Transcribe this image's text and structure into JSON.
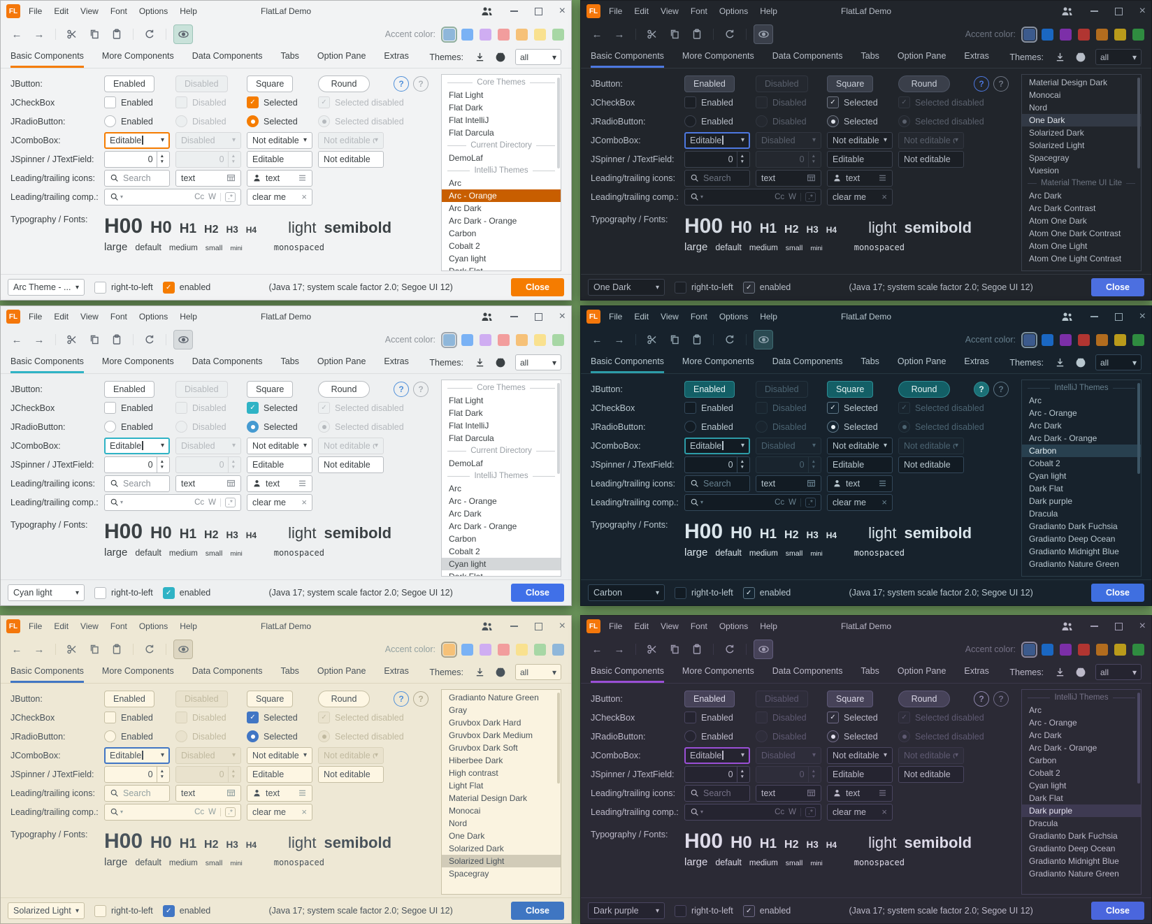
{
  "shared": {
    "logo_text": "FL",
    "title": "FlatLaf Demo",
    "menus": [
      "File",
      "Edit",
      "View",
      "Font",
      "Options",
      "Help"
    ],
    "tabs": [
      "Basic Components",
      "More Components",
      "Data Components",
      "Tabs",
      "Option Pane",
      "Extras"
    ],
    "toolbar": {
      "accent_label": "Accent color:"
    },
    "themes_header": {
      "label": "Themes:",
      "filter_value": "all"
    },
    "rows": {
      "jbutton": {
        "label": "JButton:",
        "enabled": "Enabled",
        "disabled": "Disabled",
        "square": "Square",
        "round": "Round",
        "help": "?"
      },
      "jcheckbox": {
        "label": "JCheckBox",
        "enabled": "Enabled",
        "disabled": "Disabled",
        "selected": "Selected",
        "selected_disabled": "Selected disabled"
      },
      "jradiobutton": {
        "label": "JRadioButton:",
        "enabled": "Enabled",
        "disabled": "Disabled",
        "selected": "Selected",
        "selected_disabled": "Selected disabled"
      },
      "jcombobox": {
        "label": "JComboBox:",
        "editable": "Editable",
        "disabled": "Disabled",
        "not_editable": "Not editable",
        "not_editable_disabled": "Not editable dis..."
      },
      "jspinner": {
        "label": "JSpinner / JTextField:",
        "value1": "0",
        "value2": "0",
        "editable": "Editable",
        "not_editable": "Not editable"
      },
      "icons_row": {
        "label": "Leading/trailing icons:",
        "search_placeholder": "Search",
        "text": "text"
      },
      "comp_row": {
        "label": "Leading/trailing comp.:",
        "match_case": "Cc",
        "whole_word": "W",
        "regex": ".*",
        "clear_value": "clear me"
      },
      "typography": {
        "label": "Typography / Fonts:",
        "h00": "H00",
        "h0": "H0",
        "h1": "H1",
        "h2": "H2",
        "h3": "H3",
        "h4": "H4",
        "light": "light",
        "semibold": "semibold",
        "large": "large",
        "default": "default",
        "medium": "medium",
        "small": "small",
        "mini": "mini",
        "monospaced": "monospaced"
      }
    },
    "statusbar": {
      "rtl_label": "right-to-left",
      "enabled_label": "enabled",
      "java_info": "(Java 17;  system scale factor 2.0; Segoe UI 12)",
      "close_label": "Close"
    }
  },
  "windows": [
    {
      "theme": "arc-orange",
      "bottom_theme_value": "Arc Theme - ...",
      "selected_swatch": 0,
      "accent_swatches": [
        "#8fb7da",
        "#7ab2f5",
        "#cfadf2",
        "#f29d9d",
        "#f6c178",
        "#f9e18f",
        "#a7d7a5"
      ],
      "themes_list": [
        {
          "sep": "Core Themes"
        },
        {
          "label": "Flat Light"
        },
        {
          "label": "Flat Dark"
        },
        {
          "label": "Flat IntelliJ"
        },
        {
          "label": "Flat Darcula"
        },
        {
          "sep": "Current Directory"
        },
        {
          "label": "DemoLaf"
        },
        {
          "sep": "IntelliJ Themes"
        },
        {
          "label": "Arc"
        },
        {
          "label": "Arc - Orange",
          "selected": true
        },
        {
          "label": "Arc Dark"
        },
        {
          "label": "Arc Dark - Orange"
        },
        {
          "label": "Carbon"
        },
        {
          "label": "Cobalt 2"
        },
        {
          "label": "Cyan light"
        },
        {
          "label": "Dark Flat"
        }
      ]
    },
    {
      "theme": "one-dark",
      "bottom_theme_value": "One Dark",
      "selected_swatch": 0,
      "accent_swatches": [
        "#3c5a8c",
        "#1a67c2",
        "#7c2fa8",
        "#b13531",
        "#b26c1e",
        "#ba9b1b",
        "#2f8c40"
      ],
      "themes_list": [
        {
          "label": "Material Design Dark"
        },
        {
          "label": "Monocai"
        },
        {
          "label": "Nord"
        },
        {
          "label": "One Dark",
          "selected": true
        },
        {
          "label": "Solarized Dark"
        },
        {
          "label": "Solarized Light"
        },
        {
          "label": "Spacegray"
        },
        {
          "label": "Vuesion"
        },
        {
          "sep": "Material Theme UI Lite"
        },
        {
          "label": "Arc Dark"
        },
        {
          "label": "Arc Dark Contrast"
        },
        {
          "label": "Atom One Dark"
        },
        {
          "label": "Atom One Dark Contrast"
        },
        {
          "label": "Atom One Light"
        },
        {
          "label": "Atom One Light Contrast"
        }
      ]
    },
    {
      "theme": "cyan-light",
      "bottom_theme_value": "Cyan light",
      "selected_swatch": 0,
      "accent_swatches": [
        "#8fb7da",
        "#7ab2f5",
        "#cfadf2",
        "#f29d9d",
        "#f6c178",
        "#f9e18f",
        "#a7d7a5"
      ],
      "themes_list": [
        {
          "sep": "Core Themes"
        },
        {
          "label": "Flat Light"
        },
        {
          "label": "Flat Dark"
        },
        {
          "label": "Flat IntelliJ"
        },
        {
          "label": "Flat Darcula"
        },
        {
          "sep": "Current Directory"
        },
        {
          "label": "DemoLaf"
        },
        {
          "sep": "IntelliJ Themes"
        },
        {
          "label": "Arc"
        },
        {
          "label": "Arc - Orange"
        },
        {
          "label": "Arc Dark"
        },
        {
          "label": "Arc Dark - Orange"
        },
        {
          "label": "Carbon"
        },
        {
          "label": "Cobalt 2"
        },
        {
          "label": "Cyan light",
          "selected": true
        },
        {
          "label": "Dark Flat"
        }
      ]
    },
    {
      "theme": "carbon",
      "bottom_theme_value": "Carbon",
      "selected_swatch": 0,
      "accent_swatches": [
        "#3c5a8c",
        "#1a67c2",
        "#7c2fa8",
        "#b13531",
        "#b26c1e",
        "#ba9b1b",
        "#2f8c40"
      ],
      "themes_list": [
        {
          "sep": "IntelliJ Themes"
        },
        {
          "label": "Arc"
        },
        {
          "label": "Arc - Orange"
        },
        {
          "label": "Arc Dark"
        },
        {
          "label": "Arc Dark - Orange"
        },
        {
          "label": "Carbon",
          "selected": true
        },
        {
          "label": "Cobalt 2"
        },
        {
          "label": "Cyan light"
        },
        {
          "label": "Dark Flat"
        },
        {
          "label": "Dark purple"
        },
        {
          "label": "Dracula"
        },
        {
          "label": "Gradianto Dark Fuchsia"
        },
        {
          "label": "Gradianto Deep Ocean"
        },
        {
          "label": "Gradianto Midnight Blue"
        },
        {
          "label": "Gradianto Nature Green"
        }
      ]
    },
    {
      "theme": "solarized-light",
      "bottom_theme_value": "Solarized Light",
      "selected_swatch": 0,
      "accent_swatches": [
        "#f6c178",
        "#7ab2f5",
        "#cfadf2",
        "#f29d9d",
        "#f9e18f",
        "#a7d7a5",
        "#8fb7da"
      ],
      "themes_list": [
        {
          "label": "Gradianto Nature Green"
        },
        {
          "label": "Gray"
        },
        {
          "label": "Gruvbox Dark Hard"
        },
        {
          "label": "Gruvbox Dark Medium"
        },
        {
          "label": "Gruvbox Dark Soft"
        },
        {
          "label": "Hiberbee Dark"
        },
        {
          "label": "High contrast"
        },
        {
          "label": "Light Flat"
        },
        {
          "label": "Material Design Dark"
        },
        {
          "label": "Monocai"
        },
        {
          "label": "Nord"
        },
        {
          "label": "One Dark"
        },
        {
          "label": "Solarized Dark"
        },
        {
          "label": "Solarized Light",
          "selected": true
        },
        {
          "label": "Spacegray"
        }
      ]
    },
    {
      "theme": "dark-purple",
      "bottom_theme_value": "Dark purple",
      "selected_swatch": 0,
      "accent_swatches": [
        "#3c5a8c",
        "#1a67c2",
        "#7c2fa8",
        "#b13531",
        "#b26c1e",
        "#ba9b1b",
        "#2f8c40"
      ],
      "themes_list": [
        {
          "sep": "IntelliJ Themes"
        },
        {
          "label": "Arc"
        },
        {
          "label": "Arc - Orange"
        },
        {
          "label": "Arc Dark"
        },
        {
          "label": "Arc Dark - Orange"
        },
        {
          "label": "Carbon"
        },
        {
          "label": "Cobalt 2"
        },
        {
          "label": "Cyan light"
        },
        {
          "label": "Dark Flat"
        },
        {
          "label": "Dark purple",
          "selected": true
        },
        {
          "label": "Dracula"
        },
        {
          "label": "Gradianto Dark Fuchsia"
        },
        {
          "label": "Gradianto Deep Ocean"
        },
        {
          "label": "Gradianto Midnight Blue"
        },
        {
          "label": "Gradianto Nature Green"
        }
      ]
    }
  ]
}
